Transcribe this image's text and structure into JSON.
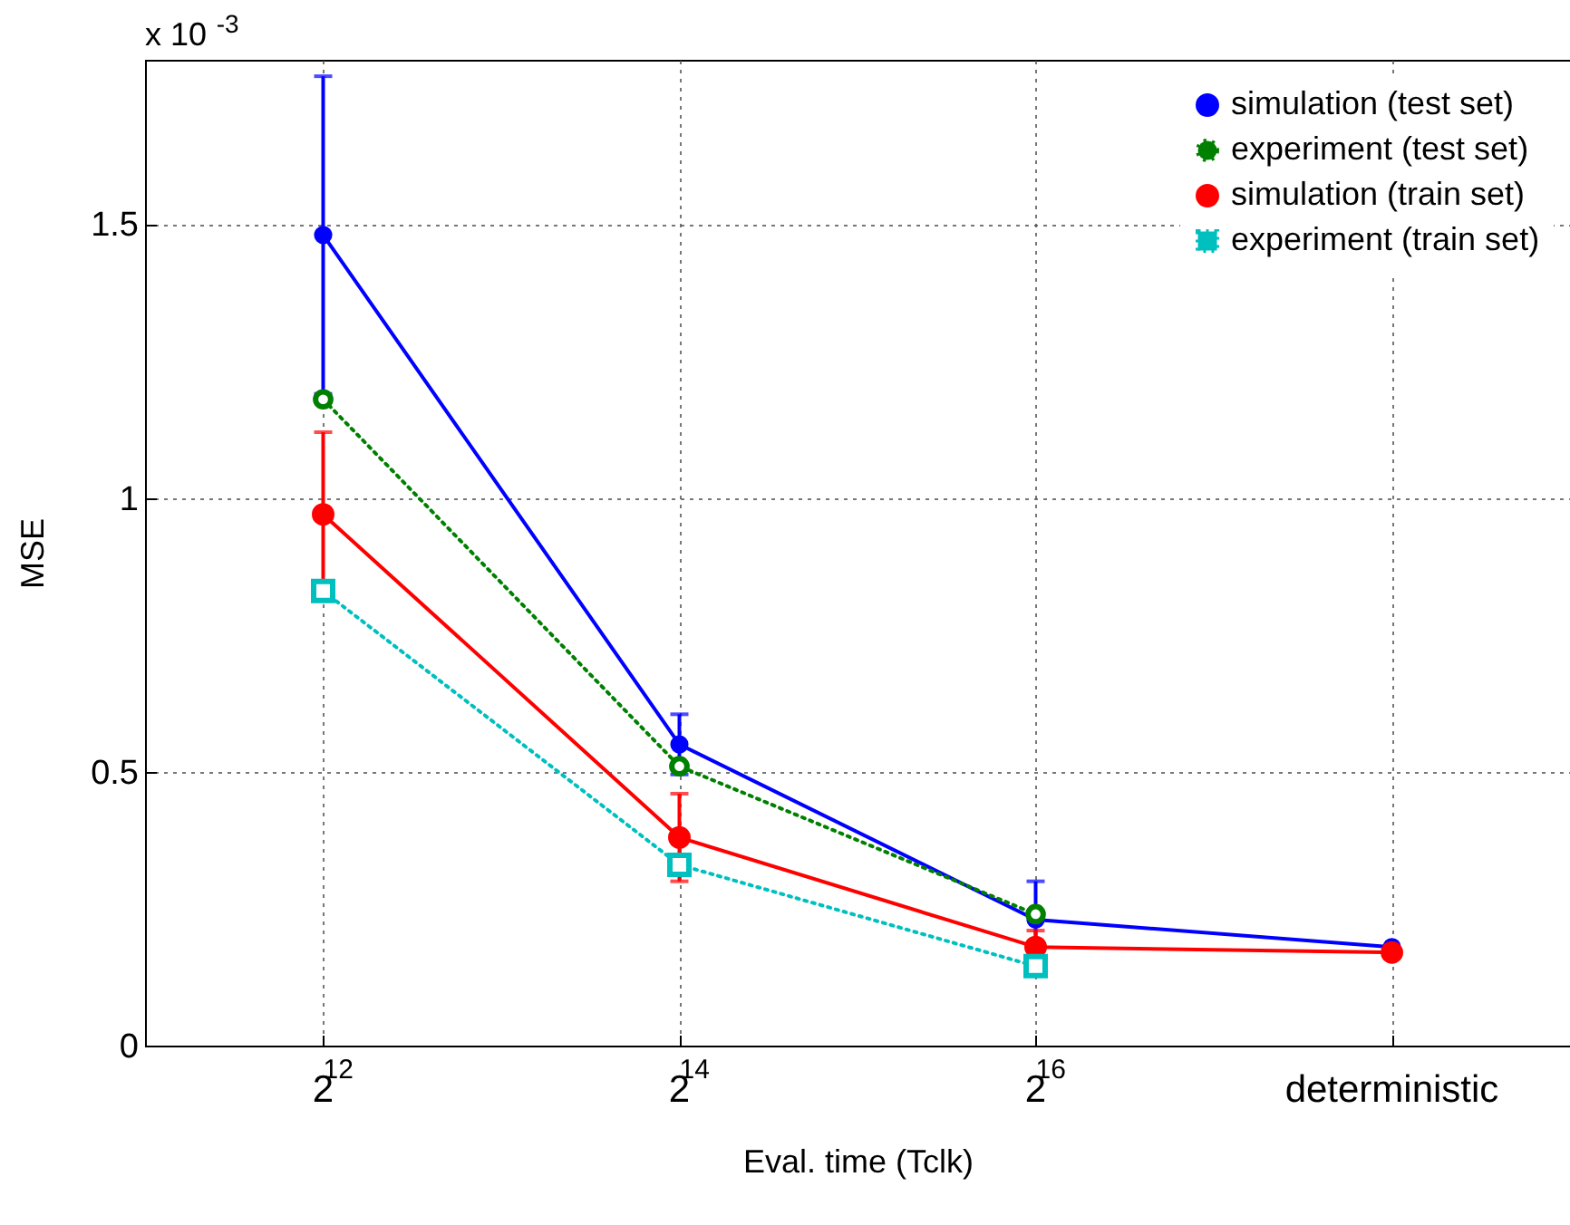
{
  "chart_data": {
    "type": "line",
    "xlabel": "Eval. time (Tclk)",
    "ylabel": "MSE",
    "annotations": [
      "x 10$^{-3}$"
    ],
    "categories": [
      "2$^{12}$",
      "2$^{14}$",
      "2$^{16}$",
      "deterministic"
    ],
    "series": [
      {
        "name": "simulation (test set)",
        "color": "#0000ff",
        "marker": "circle",
        "line_style": "solid",
        "values": [
          1.48,
          0.55,
          0.23,
          0.18
        ],
        "errors": [
          0.29,
          0.055,
          0.07,
          null
        ]
      },
      {
        "name": "experiment (test set)",
        "color": "#008000",
        "marker": "circle",
        "line_style": "dotted",
        "values": [
          1.18,
          0.51,
          0.24,
          null
        ]
      },
      {
        "name": "simulation (train set)",
        "color": "#ff0000",
        "marker": "circle",
        "line_style": "solid",
        "values": [
          0.97,
          0.38,
          0.18,
          0.17
        ],
        "errors": [
          0.15,
          0.08,
          0.03,
          null
        ]
      },
      {
        "name": "experiment (train set)",
        "color": "#00bfbf",
        "marker": "square",
        "line_style": "dotted",
        "values": [
          0.83,
          0.33,
          0.145,
          null
        ]
      }
    ],
    "ylim": [
      0,
      1.8
    ],
    "yticks": [
      0,
      0.5,
      1,
      1.5
    ],
    "grid": true,
    "legend": "top right"
  }
}
